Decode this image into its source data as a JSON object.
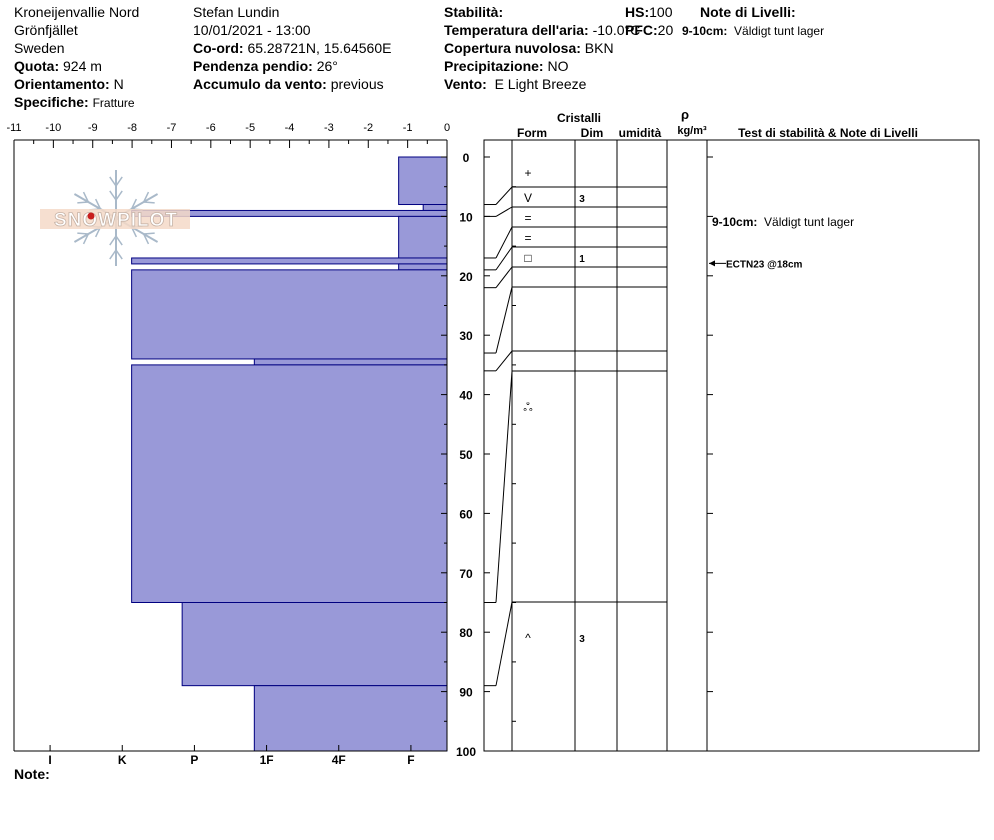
{
  "header": {
    "location": "Kroneijenvallie Nord",
    "area": "Grönfjället",
    "country": "Sweden",
    "quota_label": "Quota:",
    "quota_value": "924 m",
    "orient_label": "Orientamento:",
    "orient_value": "N",
    "spec_label": "Specifiche:",
    "spec_value": "Fratture",
    "observer": "Stefan Lundin",
    "datetime": "10/01/2021 - 13:00",
    "coord_label": "Co-ord:",
    "coord_value": "65.28721N, 15.64560E",
    "slope_label": "Pendenza pendio:",
    "slope_value": "26°",
    "wind_load_label": "Accumulo da vento:",
    "wind_load_value": "previous",
    "stab_label": "Stabilità:",
    "air_label": "Temperatura dell'aria:",
    "air_value": "-10.0°C",
    "cloud_label": "Copertura nuvolosa:",
    "cloud_value": "BKN",
    "precip_label": "Precipitazione:",
    "precip_value": "NO",
    "wind_label": "Vento:",
    "wind_value": "E Light Breeze",
    "hs_label": "HS:",
    "hs_value": "100",
    "pen_label": "PFC:",
    "pen_value": "20",
    "notes_label": "Note di Livelli:",
    "notes_item_label": "9-10cm:",
    "notes_item_value": "Väldigt tunt lager"
  },
  "logo": {
    "text": "SNOWPILOT"
  },
  "footer": {
    "note_label": "Note:"
  },
  "chart_data": {
    "type": "bar",
    "title": "",
    "temperature_axis": {
      "ticks": [
        -11,
        -10,
        -9,
        -8,
        -7,
        -6,
        -5,
        -4,
        -3,
        -2,
        -1,
        0
      ],
      "range": [
        -11,
        0
      ]
    },
    "hardness_axis": {
      "labels": [
        "I",
        "K",
        "P",
        "1F",
        "4F",
        "F"
      ],
      "range": [
        0,
        6
      ]
    },
    "depth_axis": {
      "ticks": [
        0,
        10,
        20,
        30,
        40,
        50,
        60,
        70,
        80,
        90,
        100
      ],
      "range": [
        0,
        100
      ]
    },
    "layers": [
      {
        "top": 0,
        "bottom": 8,
        "hardness": 0.67,
        "form": "+",
        "size": ""
      },
      {
        "top": 8,
        "bottom": 9,
        "hardness": 0.33,
        "form": "",
        "size": ""
      },
      {
        "top": 9,
        "bottom": 10,
        "hardness": 4.37,
        "form": "V",
        "size": "3"
      },
      {
        "top": 10,
        "bottom": 17,
        "hardness": 0.67,
        "form": "=",
        "size": ""
      },
      {
        "top": 17,
        "bottom": 18,
        "hardness": 4.37,
        "form": "=",
        "size": ""
      },
      {
        "top": 18,
        "bottom": 19,
        "hardness": 0.67,
        "form": "",
        "size": ""
      },
      {
        "top": 19,
        "bottom": 34,
        "hardness": 4.37,
        "form": "□",
        "size": "1"
      },
      {
        "top": 34,
        "bottom": 35,
        "hardness": 2.67,
        "form": "",
        "size": ""
      },
      {
        "top": 35,
        "bottom": 75,
        "hardness": 4.37,
        "form": "",
        "size": ""
      },
      {
        "top": 75,
        "bottom": 89,
        "hardness": 3.67,
        "form": "ஃ",
        "size": ""
      },
      {
        "top": 89,
        "bottom": 100,
        "hardness": 2.67,
        "form": "^",
        "size": "3"
      }
    ],
    "layer_table_rows": [
      {
        "top": 0,
        "bottom": 8,
        "form": "+",
        "size": ""
      },
      {
        "top": 8,
        "bottom": 10,
        "form": "V",
        "size": "3"
      },
      {
        "top": 10,
        "bottom": 17,
        "form": "=",
        "size": ""
      },
      {
        "top": 17,
        "bottom": 19,
        "form": "=",
        "size": ""
      },
      {
        "top": 19,
        "bottom": 22,
        "form": "□",
        "size": "1"
      },
      {
        "top": 22,
        "bottom": 33,
        "form": "",
        "size": ""
      },
      {
        "top": 33,
        "bottom": 36,
        "form": "",
        "size": ""
      },
      {
        "top": 36,
        "bottom": 75,
        "form": "",
        "size": ""
      },
      {
        "top": 75,
        "bottom": 89,
        "form": "ஃ",
        "size": ""
      },
      {
        "top": 89,
        "bottom": 100,
        "form": "^",
        "size": "3"
      }
    ],
    "table_headers": {
      "crystals": "Cristalli",
      "form": "Form",
      "dim": "Dim",
      "humidity": "umidità",
      "rho": "ρ",
      "density_unit": "kg/m³",
      "tests": "Test di stabilità & Note di Livelli"
    },
    "notes": [
      {
        "depth": 10,
        "label": "9-10cm:",
        "text": "Väldigt tunt lager"
      }
    ],
    "tests": [
      {
        "depth": 18,
        "text": "ECTN23 @18cm"
      }
    ],
    "colors": {
      "bar_fill": "#9999d8",
      "bar_stroke": "#000080",
      "logo_red": "#c81e1e",
      "logo_blue": "#a9b9c9"
    }
  }
}
